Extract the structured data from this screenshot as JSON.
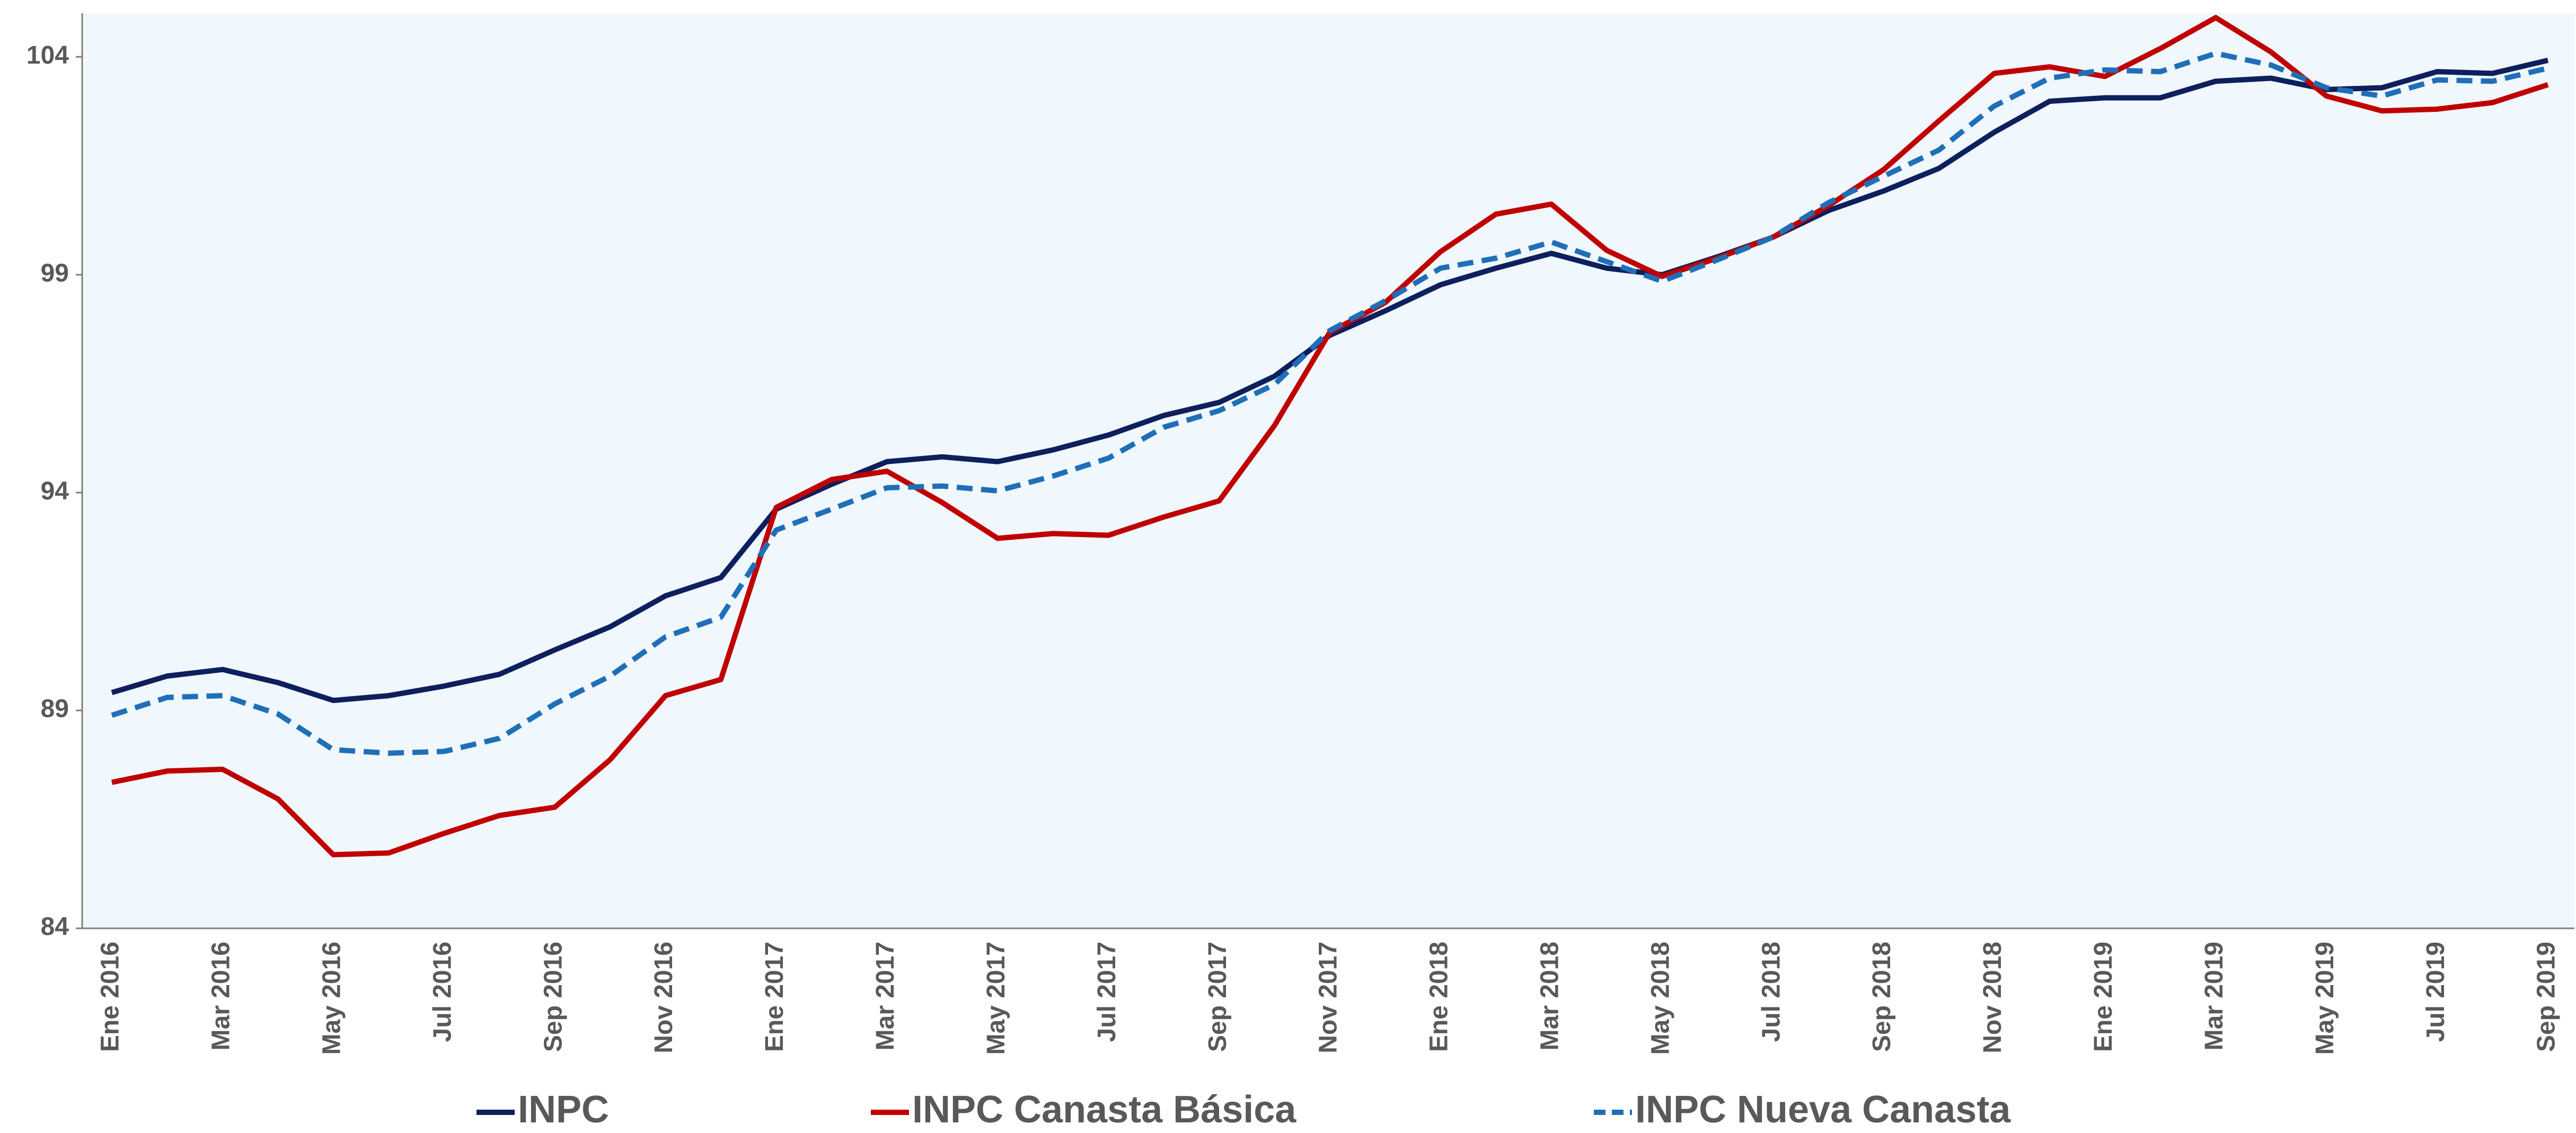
{
  "chart_data": {
    "type": "line",
    "categories": [
      "Ene 2016",
      null,
      "Mar 2016",
      null,
      "May 2016",
      null,
      "Jul 2016",
      null,
      "Sep 2016",
      null,
      "Nov 2016",
      null,
      "Ene 2017",
      null,
      "Mar 2017",
      null,
      "May 2017",
      null,
      "Jul 2017",
      null,
      "Sep 2017",
      null,
      "Nov 2017",
      null,
      "Ene 2018",
      null,
      "Mar 2018",
      null,
      "May 2018",
      null,
      "Jul 2018",
      null,
      "Sep 2018",
      null,
      "Nov 2018",
      null,
      "Ene 2019",
      null,
      "Mar 2019",
      null,
      "May 2019",
      null,
      "Jul 2019",
      null,
      "Sep 2019"
    ],
    "series": [
      {
        "name": "INPC",
        "color": "#0d1f5c",
        "dashed": false,
        "values": [
          89.41,
          89.79,
          89.94,
          89.64,
          89.23,
          89.34,
          89.56,
          89.83,
          90.39,
          90.92,
          91.63,
          92.05,
          93.62,
          94.19,
          94.71,
          94.82,
          94.71,
          94.98,
          95.32,
          95.77,
          96.07,
          96.67,
          97.61,
          98.17,
          98.77,
          99.15,
          99.49,
          99.15,
          99.0,
          99.41,
          99.86,
          100.47,
          100.92,
          101.44,
          102.27,
          102.98,
          103.06,
          103.06,
          103.44,
          103.51,
          103.25,
          103.29,
          103.66,
          103.62,
          103.92
        ]
      },
      {
        "name": "INPC Canasta Básica",
        "color": "#c00000",
        "dashed": false,
        "values": [
          87.35,
          87.61,
          87.65,
          86.97,
          85.69,
          85.73,
          86.18,
          86.59,
          86.78,
          87.87,
          89.34,
          89.71,
          93.66,
          94.3,
          94.49,
          93.77,
          92.95,
          93.06,
          93.02,
          93.44,
          93.81,
          95.54,
          97.68,
          98.36,
          99.53,
          100.39,
          100.62,
          99.56,
          98.96,
          99.38,
          99.86,
          100.58,
          101.41,
          102.53,
          103.62,
          103.77,
          103.55,
          104.19,
          104.9,
          104.11,
          103.1,
          102.76,
          102.8,
          102.95,
          103.36
        ]
      },
      {
        "name": "INPC Nueva Canasta",
        "color": "#1f6fb8",
        "dashed": true,
        "values": [
          88.89,
          89.3,
          89.34,
          88.92,
          88.1,
          88.02,
          88.06,
          88.36,
          89.15,
          89.79,
          90.69,
          91.14,
          93.14,
          93.62,
          94.11,
          94.15,
          94.04,
          94.38,
          94.79,
          95.5,
          95.88,
          96.48,
          97.72,
          98.4,
          99.15,
          99.38,
          99.75,
          99.3,
          98.85,
          99.34,
          99.86,
          100.65,
          101.26,
          101.86,
          102.87,
          103.51,
          103.7,
          103.66,
          104.08,
          103.81,
          103.29,
          103.1,
          103.47,
          103.44,
          103.74
        ]
      }
    ],
    "ylim": [
      84,
      105
    ],
    "yticks": [
      84,
      89,
      94,
      99,
      104
    ],
    "grid": false,
    "legend": "bottom"
  }
}
